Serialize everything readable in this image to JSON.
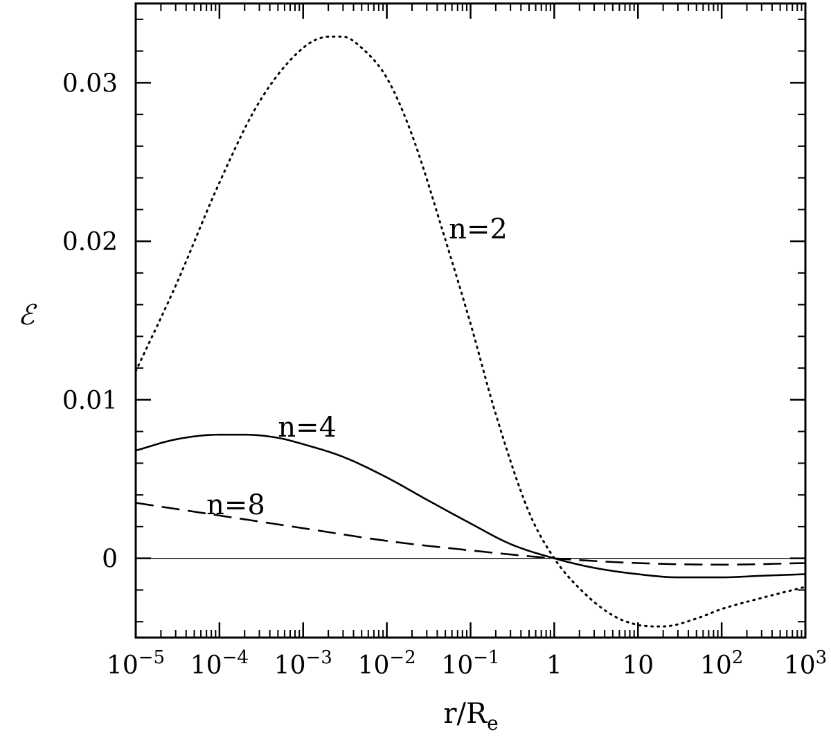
{
  "chart_data": {
    "type": "line",
    "xscale": "log",
    "xlim": [
      1e-05,
      1000
    ],
    "ylim": [
      -0.005,
      0.035
    ],
    "xlabel": {
      "main": "r/R",
      "sub": "e"
    },
    "ylabel": "ℰ",
    "x_ticks": [
      {
        "value": 1e-05,
        "base": "10",
        "exp": "−5"
      },
      {
        "value": 0.0001,
        "base": "10",
        "exp": "−4"
      },
      {
        "value": 0.001,
        "base": "10",
        "exp": "−3"
      },
      {
        "value": 0.01,
        "base": "10",
        "exp": "−2"
      },
      {
        "value": 0.1,
        "base": "10",
        "exp": "−1"
      },
      {
        "value": 1,
        "base": "1",
        "exp": ""
      },
      {
        "value": 10,
        "base": "10",
        "exp": ""
      },
      {
        "value": 100,
        "base": "10",
        "exp": "2"
      },
      {
        "value": 1000,
        "base": "10",
        "exp": "3"
      }
    ],
    "y_ticks": [
      {
        "value": 0,
        "label": "0"
      },
      {
        "value": 0.01,
        "label": "0.01"
      },
      {
        "value": 0.02,
        "label": "0.02"
      },
      {
        "value": 0.03,
        "label": "0.03"
      }
    ],
    "zero_line": true,
    "series": [
      {
        "name": "n=2",
        "style": "dotted",
        "label_at": [
          0.055,
          0.0208
        ],
        "points": [
          [
            1e-05,
            0.0118
          ],
          [
            3e-05,
            0.0172
          ],
          [
            0.0001,
            0.0237
          ],
          [
            0.0003,
            0.0288
          ],
          [
            0.001,
            0.0322
          ],
          [
            0.002,
            0.0329
          ],
          [
            0.003,
            0.0329
          ],
          [
            0.005,
            0.0322
          ],
          [
            0.01,
            0.0303
          ],
          [
            0.02,
            0.0267
          ],
          [
            0.05,
            0.0201
          ],
          [
            0.1,
            0.0148
          ],
          [
            0.2,
            0.0091
          ],
          [
            0.5,
            0.0029
          ],
          [
            1,
            0.0
          ],
          [
            2,
            -0.0019
          ],
          [
            5,
            -0.0036
          ],
          [
            10,
            -0.0042
          ],
          [
            20,
            -0.0043
          ],
          [
            50,
            -0.0038
          ],
          [
            100,
            -0.0032
          ],
          [
            300,
            -0.0025
          ],
          [
            1000,
            -0.0018
          ]
        ]
      },
      {
        "name": "n=4",
        "style": "solid",
        "label_at": [
          0.0005,
          0.0083
        ],
        "points": [
          [
            1e-05,
            0.0068
          ],
          [
            3e-05,
            0.0075
          ],
          [
            0.0001,
            0.0078
          ],
          [
            0.0002,
            0.0078
          ],
          [
            0.0005,
            0.0076
          ],
          [
            0.001,
            0.0072
          ],
          [
            0.003,
            0.0064
          ],
          [
            0.01,
            0.0051
          ],
          [
            0.03,
            0.0037
          ],
          [
            0.1,
            0.0022
          ],
          [
            0.3,
            0.0009
          ],
          [
            1,
            0.0
          ],
          [
            3,
            -0.0006
          ],
          [
            10,
            -0.001
          ],
          [
            30,
            -0.0012
          ],
          [
            100,
            -0.0012
          ],
          [
            300,
            -0.0011
          ],
          [
            1000,
            -0.001
          ]
        ]
      },
      {
        "name": "n=8",
        "style": "dashed",
        "label_at": [
          7e-05,
          0.0034
        ],
        "points": [
          [
            1e-05,
            0.0035
          ],
          [
            0.0001,
            0.0027
          ],
          [
            0.001,
            0.0019
          ],
          [
            0.01,
            0.0011
          ],
          [
            0.1,
            0.0005
          ],
          [
            1,
            0.0
          ],
          [
            10,
            -0.0003
          ],
          [
            100,
            -0.0004
          ],
          [
            1000,
            -0.0003
          ]
        ]
      }
    ]
  }
}
